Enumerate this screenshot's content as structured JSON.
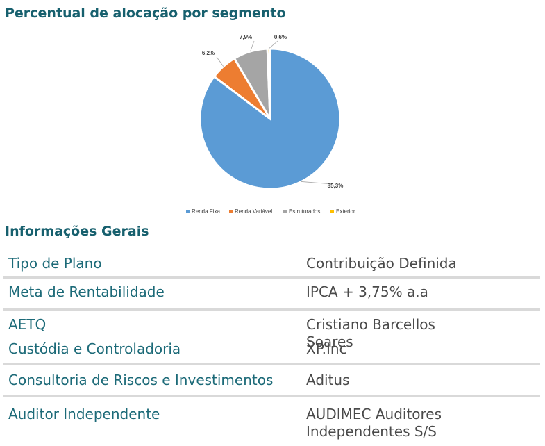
{
  "chart_data": {
    "type": "pie",
    "title": "Percentual de alocação por segmento",
    "categories": [
      "Renda Fixa",
      "Renda Variável",
      "Estruturados",
      "Exterior"
    ],
    "values": [
      85.3,
      6.2,
      7.9,
      0.6
    ],
    "value_labels": [
      "85,3%",
      "6,2%",
      "7,9%",
      "0,6%"
    ],
    "colors": [
      "#5b9bd5",
      "#ed7d31",
      "#a5a5a5",
      "#ffc000"
    ],
    "legend": "bottom"
  },
  "section": {
    "title": "Informações Gerais"
  },
  "table": {
    "rows": [
      [
        "Tipo de Plano",
        "Contribuição Definida"
      ],
      [
        "Meta de Rentabilidade",
        "IPCA + 3,75% a.a"
      ],
      [
        "AETQ",
        "Cristiano Barcellos Soares"
      ],
      [
        "Custódia e Controladoria",
        "XP.Inc"
      ],
      [
        "Consultoria de Riscos e Investimentos",
        "Aditus"
      ],
      [
        "Auditor Independente",
        "AUDIMEC Auditores Independentes S/S"
      ]
    ]
  }
}
